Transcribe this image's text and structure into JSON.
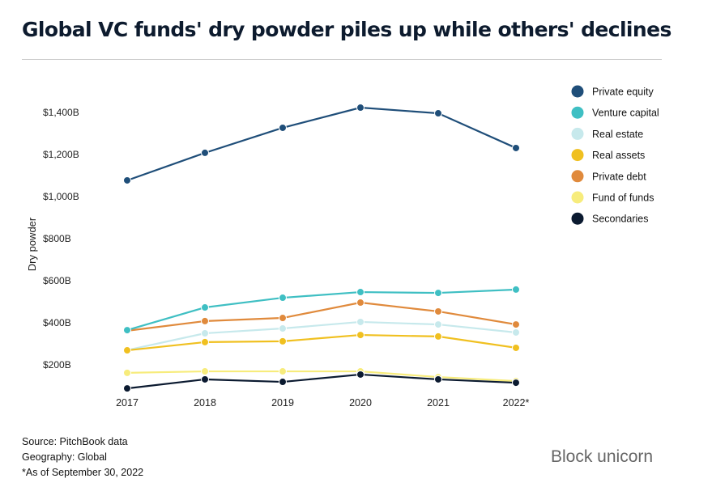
{
  "title": "Global VC funds' dry powder piles up while others' declines",
  "chart_data": {
    "type": "line",
    "title": "Global VC funds' dry powder piles up while others' declines",
    "xlabel": "",
    "ylabel": "Dry powder",
    "x": [
      "2017",
      "2018",
      "2019",
      "2020",
      "2021",
      "2022*"
    ],
    "yticks": [
      {
        "v": 200,
        "label": "$200B"
      },
      {
        "v": 400,
        "label": "$400B"
      },
      {
        "v": 600,
        "label": "$600B"
      },
      {
        "v": 800,
        "label": "$800B"
      },
      {
        "v": 1000,
        "label": "$1,000B"
      },
      {
        "v": 1200,
        "label": "$1,200B"
      },
      {
        "v": 1400,
        "label": "$1,400B"
      }
    ],
    "ylim": [
      0,
      1500
    ],
    "grid": false,
    "legend_position": "top-right",
    "series": [
      {
        "name": "Private equity",
        "color": "#1f4e79",
        "values": [
          1077,
          1208,
          1327,
          1423,
          1396,
          1231
        ]
      },
      {
        "name": "Venture capital",
        "color": "#3fbfc3",
        "values": [
          365,
          473,
          519,
          546,
          542,
          558
        ]
      },
      {
        "name": "Real estate",
        "color": "#c7e9ec",
        "values": [
          270,
          350,
          373,
          404,
          392,
          354
        ]
      },
      {
        "name": "Real assets",
        "color": "#f0c020",
        "values": [
          269,
          308,
          312,
          342,
          335,
          281
        ]
      },
      {
        "name": "Private debt",
        "color": "#e08a3c",
        "values": [
          362,
          408,
          423,
          496,
          454,
          392
        ]
      },
      {
        "name": "Fund of funds",
        "color": "#f7ec7c",
        "values": [
          162,
          169,
          169,
          169,
          142,
          123
        ]
      },
      {
        "name": "Secondaries",
        "color": "#0b1a30",
        "values": [
          88,
          131,
          119,
          154,
          131,
          115
        ]
      }
    ]
  },
  "footer": {
    "source": "Source: PitchBook data",
    "geography": "Geography: Global",
    "note": "*As of September 30, 2022"
  },
  "watermark": "Block unicorn"
}
